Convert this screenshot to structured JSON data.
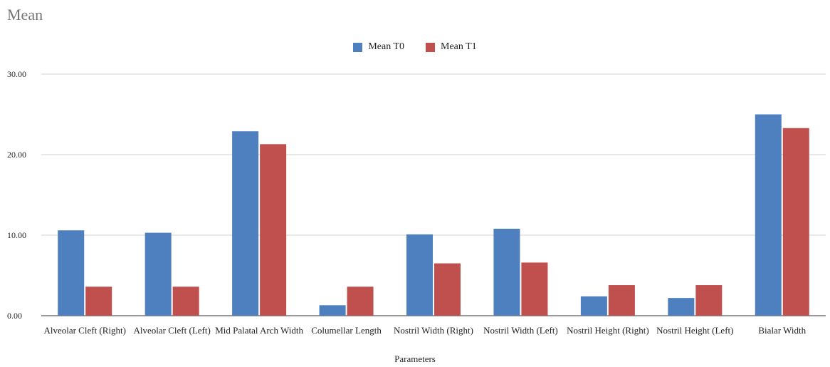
{
  "chart_data": {
    "type": "bar",
    "title": "Mean",
    "xlabel": "Parameters",
    "ylabel": "",
    "ylim": [
      0,
      30
    ],
    "yticks": [
      "0.00",
      "10.00",
      "20.00",
      "30.00"
    ],
    "grid": true,
    "legend_position": "top-center",
    "categories": [
      "Alveolar Cleft (Right)",
      "Alveolar Cleft (Left)",
      "Mid Palatal Arch Width",
      "Columellar Length",
      "Nostril Width (Right)",
      "Nostril Width (Left)",
      "Nostril Height (Right)",
      "Nostril Height (Left)",
      "Bialar Width"
    ],
    "series": [
      {
        "name": "Mean T0",
        "color": "#4e7fbf",
        "values": [
          10.6,
          10.3,
          22.9,
          1.3,
          10.1,
          10.8,
          2.4,
          2.2,
          25.0
        ]
      },
      {
        "name": "Mean T1",
        "color": "#c0504d",
        "values": [
          3.6,
          3.6,
          21.3,
          3.6,
          6.5,
          6.6,
          3.8,
          3.8,
          23.3
        ]
      }
    ]
  }
}
